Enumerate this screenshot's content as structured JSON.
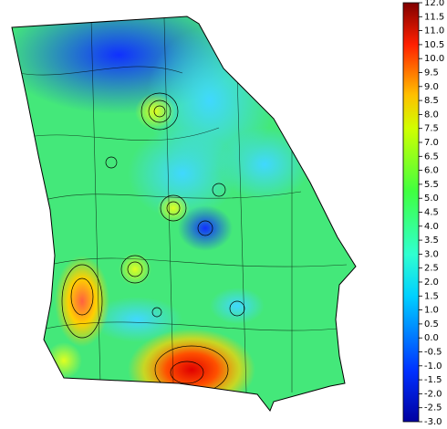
{
  "colorbar": {
    "lim": [
      -3,
      12
    ],
    "ticks": [
      {
        "value": 12,
        "label": "12.0"
      },
      {
        "value": 11.5,
        "label": "11.5"
      },
      {
        "value": 11,
        "label": "11.0"
      },
      {
        "value": 10.5,
        "label": "10.5"
      },
      {
        "value": 10,
        "label": "10.0"
      },
      {
        "value": 9.5,
        "label": "9.5"
      },
      {
        "value": 9,
        "label": "9.0"
      },
      {
        "value": 8.5,
        "label": "8.5"
      },
      {
        "value": 8,
        "label": "8.0"
      },
      {
        "value": 7.5,
        "label": "7.5"
      },
      {
        "value": 7,
        "label": "7.0"
      },
      {
        "value": 6.5,
        "label": "6.5"
      },
      {
        "value": 6,
        "label": "6.0"
      },
      {
        "value": 5.5,
        "label": "5.5"
      },
      {
        "value": 5,
        "label": "5.0"
      },
      {
        "value": 4.5,
        "label": "4.5"
      },
      {
        "value": 4,
        "label": "4.0"
      },
      {
        "value": 3.5,
        "label": "3.5"
      },
      {
        "value": 3,
        "label": "3.0"
      },
      {
        "value": 2.5,
        "label": "2.5"
      },
      {
        "value": 2,
        "label": "2.0"
      },
      {
        "value": 1.5,
        "label": "1.5"
      },
      {
        "value": 1,
        "label": "1.0"
      },
      {
        "value": 0.5,
        "label": "0.5"
      },
      {
        "value": 0,
        "label": "0.0"
      },
      {
        "value": -0.5,
        "label": "-0.5"
      },
      {
        "value": -1,
        "label": "-1.0"
      },
      {
        "value": -1.5,
        "label": "-1.5"
      },
      {
        "value": -2,
        "label": "-2.0"
      },
      {
        "value": -2.5,
        "label": "-2.5"
      },
      {
        "value": -3,
        "label": "-3.0"
      }
    ]
  }
}
